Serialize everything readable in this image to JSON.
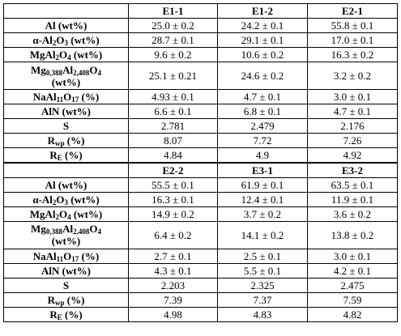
{
  "blocks": [
    {
      "headers": [
        "",
        "E1-1",
        "E1-2",
        "E2-1"
      ],
      "rows": [
        {
          "label": "Al (wt%)",
          "values": [
            "25.0 ± 0.2",
            "24.2 ± 0.1",
            "55.8 ± 0.1"
          ]
        },
        {
          "label": "α-Al2O3 (wt%)",
          "values": [
            "28.7 ± 0.1",
            "29.1 ± 0.1",
            "17.0 ± 0.1"
          ]
        },
        {
          "label": "MgAl2O4 (wt%)",
          "values": [
            "9.6 ± 0.2",
            "10.6 ± 0.2",
            "16.3 ± 0.2"
          ]
        },
        {
          "label": "Mg0,388Al2,408O4 (wt%)",
          "values": [
            "25.1 ± 0.21",
            "24.6 ± 0.2",
            "3.2 ± 0.2"
          ]
        },
        {
          "label": "NaAl11O17 (%)",
          "values": [
            "4.93 ± 0.1",
            "4.7 ± 0.1",
            "3.0 ± 0.1"
          ]
        },
        {
          "label": "AlN (wt%)",
          "values": [
            "6.6 ± 0.1",
            "6.8 ± 0.1",
            "4.7 ± 0.1"
          ]
        },
        {
          "label": "S",
          "values": [
            "2.781",
            "2.479",
            "2.176"
          ]
        },
        {
          "label": "Rwp (%)",
          "values": [
            "8.07",
            "7.72",
            "7.26"
          ]
        },
        {
          "label": "RE (%)",
          "values": [
            "4.84",
            "4.9",
            "4.92"
          ]
        }
      ]
    },
    {
      "headers": [
        "",
        "E2-2",
        "E3-1",
        "E3-2"
      ],
      "rows": [
        {
          "label": "Al (wt%)",
          "values": [
            "55.5 ± 0.1",
            "61.9 ± 0.1",
            "63.5 ± 0.1"
          ]
        },
        {
          "label": "α-Al2O3 (wt%)",
          "values": [
            "16.3 ± 0.1",
            "12.4 ± 0.1",
            "11.9 ± 0.1"
          ]
        },
        {
          "label": "MgAl2O4 (wt%)",
          "values": [
            "14.9 ± 0.2",
            "3.7 ± 0.2",
            "3.6 ± 0.2"
          ]
        },
        {
          "label": "Mg0,388Al2,408O4 (wt%)",
          "values": [
            "6.4 ± 0.2",
            "14.1 ± 0.2",
            "13.8 ± 0.2"
          ]
        },
        {
          "label": "NaAl11O17 (%)",
          "values": [
            "2.7 ± 0.1",
            "2.5 ± 0.1",
            "3.0 ± 0.1"
          ]
        },
        {
          "label": "AlN (wt%)",
          "values": [
            "4.3 ± 0.1",
            "5.5 ± 0.1",
            "4.2 ± 0.1"
          ]
        },
        {
          "label": "S",
          "values": [
            "2.203",
            "2.325",
            "2.475"
          ]
        },
        {
          "label": "Rwp (%)",
          "values": [
            "7.39",
            "7.37",
            "7.59"
          ]
        },
        {
          "label": "RE (%)",
          "values": [
            "4.98",
            "4.83",
            "4.82"
          ]
        }
      ]
    }
  ]
}
